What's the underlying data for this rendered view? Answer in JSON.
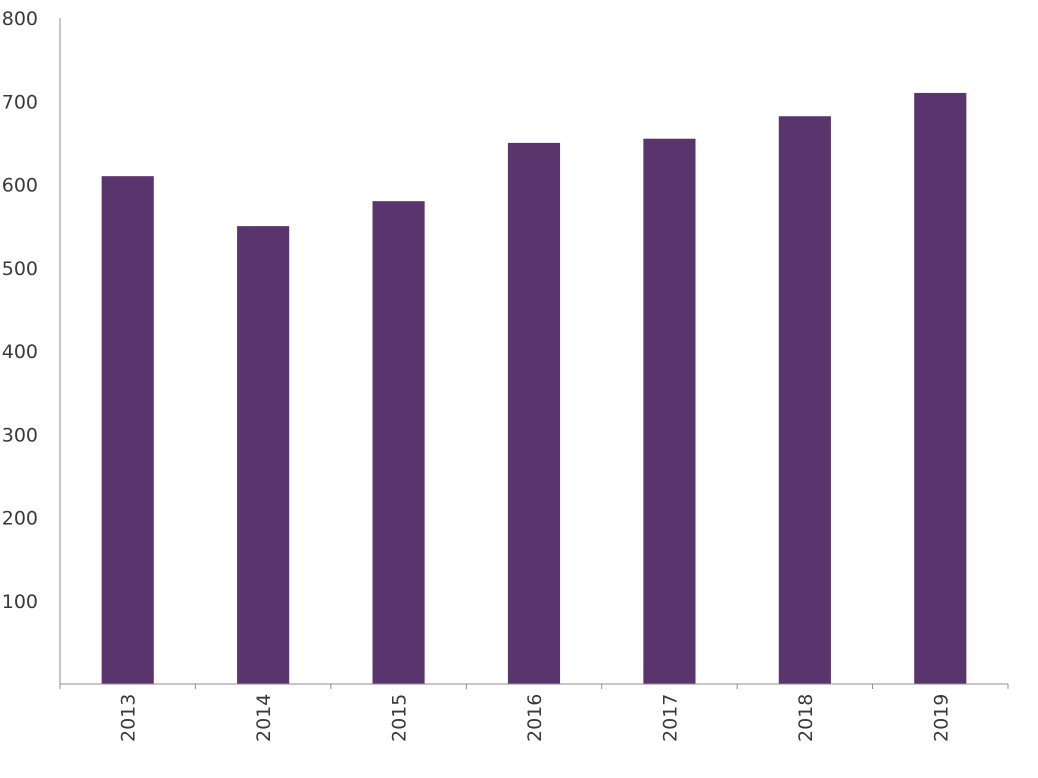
{
  "chart_data": {
    "type": "bar",
    "title": "",
    "xlabel": "",
    "ylabel": "",
    "categories": [
      "2013",
      "2014",
      "2015",
      "2016",
      "2017",
      "2018",
      "2019"
    ],
    "values": [
      610,
      550,
      580,
      650,
      655,
      682,
      710
    ],
    "ylim": [
      0,
      800
    ],
    "yticks": [
      100,
      200,
      300,
      400,
      500,
      600,
      700,
      800
    ],
    "grid": false,
    "legend": "none",
    "x_tick_rotation": "vertical"
  },
  "colors": {
    "bar": "#5a346c",
    "axis": "#8c8c8c",
    "text": "#3a3a3a",
    "background": "#ffffff"
  }
}
